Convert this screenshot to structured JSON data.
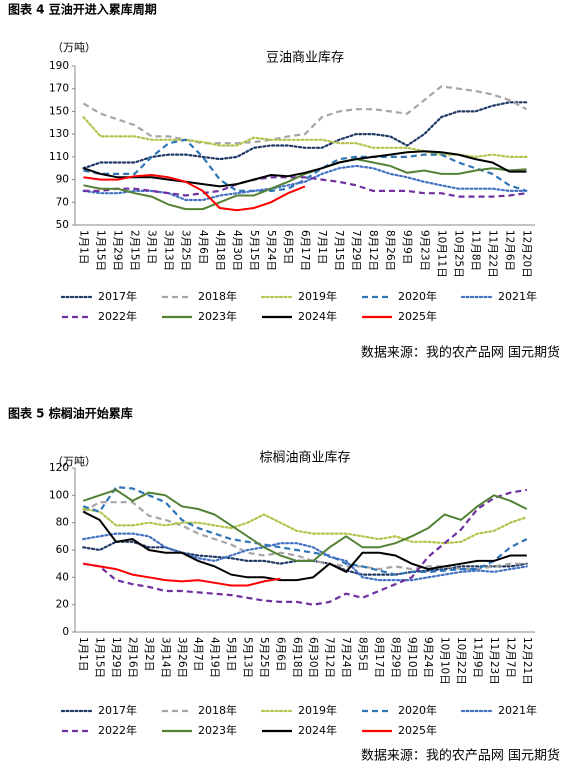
{
  "chart_data": [
    {
      "type": "line",
      "caption": "图表 4 豆油开进入累库周期",
      "title": "豆油商业库存",
      "unit": "（万吨）",
      "source": "数据来源：我的农产品网 国元期货",
      "categories": [
        "1月1日",
        "1月15日",
        "1月29日",
        "2月15日",
        "3月1日",
        "3月13日",
        "3月25日",
        "4月6日",
        "4月18日",
        "4月30日",
        "5月15日",
        "5月24日",
        "6月5日",
        "6月17日",
        "7月1日",
        "7月15日",
        "7月29日",
        "8月12日",
        "8月26日",
        "9月9日",
        "9月23日",
        "10月11日",
        "10月25日",
        "11月8日",
        "11月22日",
        "12月6日",
        "12月20日"
      ],
      "ylim": [
        50,
        190
      ],
      "yticks": [
        50,
        70,
        90,
        110,
        130,
        150,
        170,
        190
      ],
      "series": [
        {
          "name": "2017年",
          "color": "#1f3864",
          "dash": "dot",
          "values": [
            100,
            105,
            105,
            105,
            110,
            112,
            112,
            110,
            108,
            110,
            118,
            120,
            120,
            118,
            118,
            125,
            130,
            130,
            128,
            120,
            130,
            145,
            150,
            150,
            155,
            158,
            158
          ]
        },
        {
          "name": "2018年",
          "color": "#a5a5a5",
          "dash": "dash",
          "values": [
            157,
            148,
            143,
            138,
            128,
            128,
            125,
            122,
            122,
            122,
            123,
            125,
            128,
            130,
            145,
            150,
            152,
            152,
            150,
            148,
            160,
            172,
            170,
            168,
            165,
            160,
            152
          ]
        },
        {
          "name": "2019年",
          "color": "#b4c34c",
          "dash": "dot",
          "values": [
            145,
            128,
            128,
            128,
            125,
            125,
            125,
            123,
            120,
            120,
            127,
            125,
            125,
            125,
            125,
            122,
            122,
            118,
            118,
            118,
            115,
            112,
            112,
            110,
            112,
            110,
            110
          ]
        },
        {
          "name": "2020年",
          "color": "#2e75b6",
          "dash": "dash",
          "values": [
            98,
            95,
            95,
            95,
            110,
            122,
            125,
            110,
            90,
            80,
            80,
            80,
            82,
            90,
            100,
            108,
            110,
            110,
            110,
            110,
            112,
            112,
            105,
            100,
            95,
            85,
            80
          ]
        },
        {
          "name": "2021年",
          "color": "#4472c4",
          "dash": "dot",
          "values": [
            80,
            78,
            78,
            80,
            80,
            78,
            72,
            72,
            76,
            78,
            80,
            82,
            85,
            88,
            95,
            100,
            102,
            100,
            95,
            92,
            88,
            85,
            82,
            82,
            82,
            80,
            80
          ]
        },
        {
          "name": "2022年",
          "color": "#7030a0",
          "dash": "dash",
          "values": [
            80,
            80,
            82,
            82,
            80,
            78,
            76,
            78,
            80,
            86,
            90,
            92,
            92,
            92,
            90,
            88,
            85,
            80,
            80,
            80,
            78,
            78,
            75,
            75,
            75,
            76,
            78
          ]
        },
        {
          "name": "2023年",
          "color": "#548235",
          "dash": "solid",
          "values": [
            85,
            82,
            82,
            78,
            75,
            68,
            64,
            64,
            70,
            76,
            76,
            82,
            88,
            95,
            100,
            105,
            108,
            105,
            102,
            96,
            98,
            95,
            95,
            98,
            100,
            98,
            99
          ]
        },
        {
          "name": "2024年",
          "color": "#000000",
          "dash": "solid",
          "values": [
            100,
            95,
            92,
            92,
            92,
            90,
            88,
            86,
            84,
            86,
            90,
            94,
            93,
            96,
            100,
            105,
            108,
            110,
            112,
            114,
            115,
            114,
            112,
            108,
            105,
            97,
            97
          ]
        },
        {
          "name": "2025年",
          "color": "#ff0000",
          "dash": "solid",
          "values": [
            92,
            90,
            90,
            93,
            94,
            92,
            88,
            80,
            65,
            63,
            65,
            70,
            78,
            84,
            null,
            null,
            null,
            null,
            null,
            null,
            null,
            null,
            null,
            null,
            null,
            null,
            null
          ]
        }
      ]
    },
    {
      "type": "line",
      "caption": "图表 5 棕榈油开始累库",
      "title": "棕榈油商业库存",
      "unit": "（万吨）",
      "source": "数据来源：我的农产品网 国元期货",
      "categories": [
        "1月1日",
        "1月15日",
        "1月29日",
        "2月16日",
        "3月2日",
        "3月14日",
        "3月26日",
        "4月7日",
        "4月19日",
        "5月1日",
        "5月13日",
        "5月25日",
        "6月6日",
        "6月18日",
        "6月30日",
        "7月12日",
        "7月24日",
        "8月5日",
        "8月17日",
        "8月29日",
        "9月10日",
        "9月24日",
        "10月10日",
        "10月22日",
        "11月9日",
        "11月23日",
        "12月7日",
        "12月21日"
      ],
      "ylim": [
        0,
        120
      ],
      "yticks": [
        0,
        20,
        40,
        60,
        80,
        100,
        120
      ],
      "series": [
        {
          "name": "2017年",
          "color": "#1f3864",
          "dash": "dot",
          "values": [
            62,
            60,
            66,
            66,
            62,
            62,
            58,
            56,
            55,
            54,
            52,
            52,
            50,
            52,
            52,
            50,
            45,
            42,
            42,
            42,
            44,
            45,
            46,
            48,
            48,
            48,
            48,
            50
          ]
        },
        {
          "name": "2018年",
          "color": "#a5a5a5",
          "dash": "dash",
          "values": [
            88,
            95,
            95,
            95,
            85,
            82,
            78,
            72,
            68,
            64,
            58,
            56,
            58,
            56,
            52,
            50,
            48,
            48,
            46,
            48,
            46,
            48,
            48,
            46,
            46,
            48,
            50,
            50
          ]
        },
        {
          "name": "2019年",
          "color": "#b4c34c",
          "dash": "dot",
          "values": [
            90,
            88,
            78,
            78,
            80,
            78,
            80,
            80,
            78,
            76,
            80,
            86,
            80,
            74,
            72,
            72,
            72,
            70,
            68,
            70,
            66,
            66,
            65,
            66,
            72,
            74,
            80,
            84
          ]
        },
        {
          "name": "2020年",
          "color": "#2e75b6",
          "dash": "dash",
          "values": [
            92,
            88,
            106,
            105,
            100,
            95,
            82,
            76,
            72,
            68,
            66,
            64,
            62,
            60,
            58,
            56,
            50,
            48,
            45,
            42,
            44,
            44,
            45,
            46,
            46,
            52,
            62,
            68
          ]
        },
        {
          "name": "2021年",
          "color": "#4472c4",
          "dash": "dot",
          "values": [
            68,
            70,
            72,
            72,
            70,
            62,
            58,
            54,
            52,
            56,
            60,
            62,
            65,
            65,
            62,
            55,
            52,
            40,
            38,
            38,
            38,
            40,
            42,
            44,
            45,
            44,
            46,
            48
          ]
        },
        {
          "name": "2022年",
          "color": "#7030a0",
          "dash": "dash",
          "values": [
            50,
            48,
            38,
            35,
            33,
            30,
            30,
            29,
            28,
            27,
            25,
            23,
            22,
            22,
            20,
            22,
            28,
            25,
            30,
            35,
            40,
            55,
            65,
            75,
            90,
            98,
            102,
            104
          ]
        },
        {
          "name": "2023年",
          "color": "#548235",
          "dash": "solid",
          "values": [
            96,
            100,
            104,
            96,
            102,
            100,
            92,
            90,
            86,
            78,
            70,
            62,
            56,
            52,
            52,
            62,
            70,
            62,
            62,
            65,
            70,
            76,
            86,
            82,
            92,
            100,
            96,
            90
          ]
        },
        {
          "name": "2024年",
          "color": "#000000",
          "dash": "solid",
          "values": [
            88,
            82,
            66,
            68,
            60,
            58,
            58,
            52,
            48,
            42,
            40,
            40,
            38,
            38,
            40,
            50,
            44,
            58,
            58,
            56,
            50,
            46,
            48,
            50,
            52,
            52,
            56,
            56
          ]
        },
        {
          "name": "2025年",
          "color": "#ff0000",
          "dash": "solid",
          "values": [
            50,
            48,
            46,
            42,
            40,
            38,
            37,
            38,
            36,
            34,
            34,
            37,
            39,
            null,
            null,
            null,
            null,
            null,
            null,
            null,
            null,
            null,
            null,
            null,
            null,
            null,
            null,
            null
          ]
        }
      ]
    }
  ]
}
